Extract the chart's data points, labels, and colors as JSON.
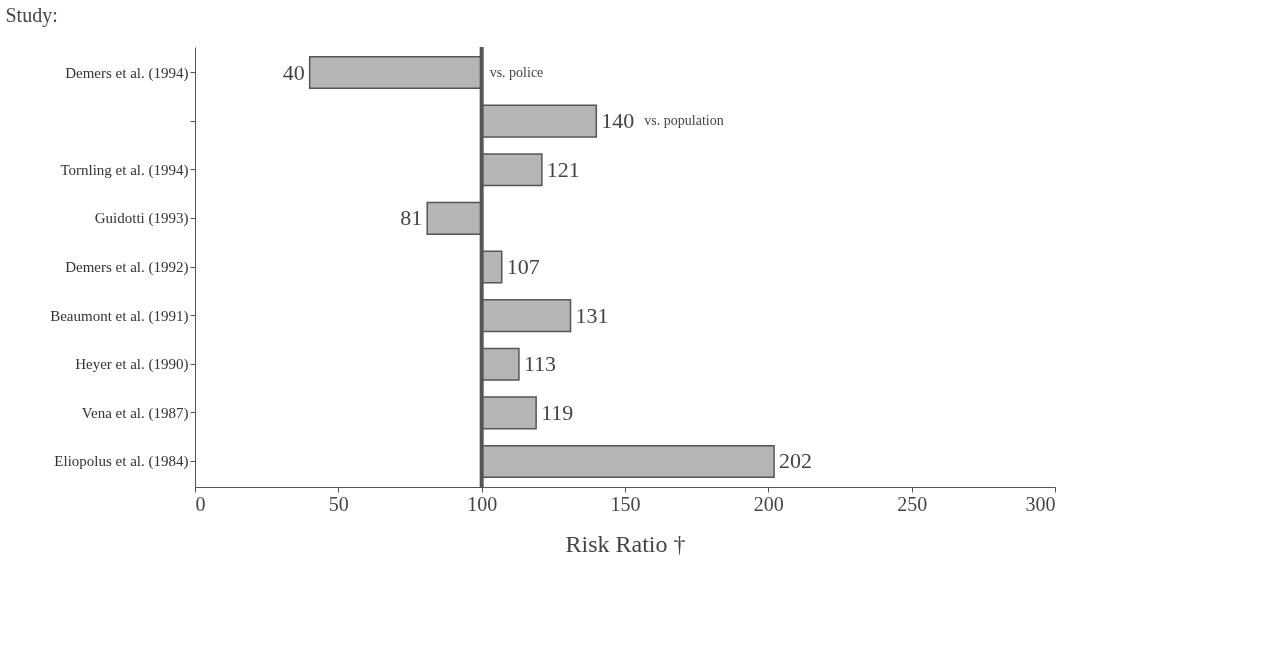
{
  "chart_data": {
    "type": "bar",
    "orientation": "horizontal",
    "ylabel": "Study:",
    "xlabel": "Risk Ratio †",
    "categories": [
      "Demers et al. (1994)",
      null,
      "Tornling et al. (1994)",
      "Guidotti (1993)",
      "Demers et al. (1992)",
      "Beaumont et al. (1991)",
      "Heyer et al. (1990)",
      "Vena et al. (1987)",
      "Eliopolus et al. (1984)"
    ],
    "base": [
      100,
      100,
      100,
      100,
      100,
      100,
      100,
      100,
      100
    ],
    "values": [
      -60,
      40,
      21,
      -19,
      7,
      31,
      13,
      19,
      102
    ],
    "value_labels": [
      "40",
      "140",
      "121",
      "81",
      "107",
      "131",
      "113",
      "119",
      "202"
    ],
    "color": "#b5b5b5",
    "xlim": [
      0,
      300
    ],
    "xticks": [
      0,
      50,
      100,
      150,
      200,
      250,
      300
    ],
    "ref_lines": [
      {
        "axis": "x",
        "value": 100,
        "color": "#555555"
      }
    ],
    "annotations": [
      "vs. police",
      "vs. population"
    ],
    "grid": false
  }
}
